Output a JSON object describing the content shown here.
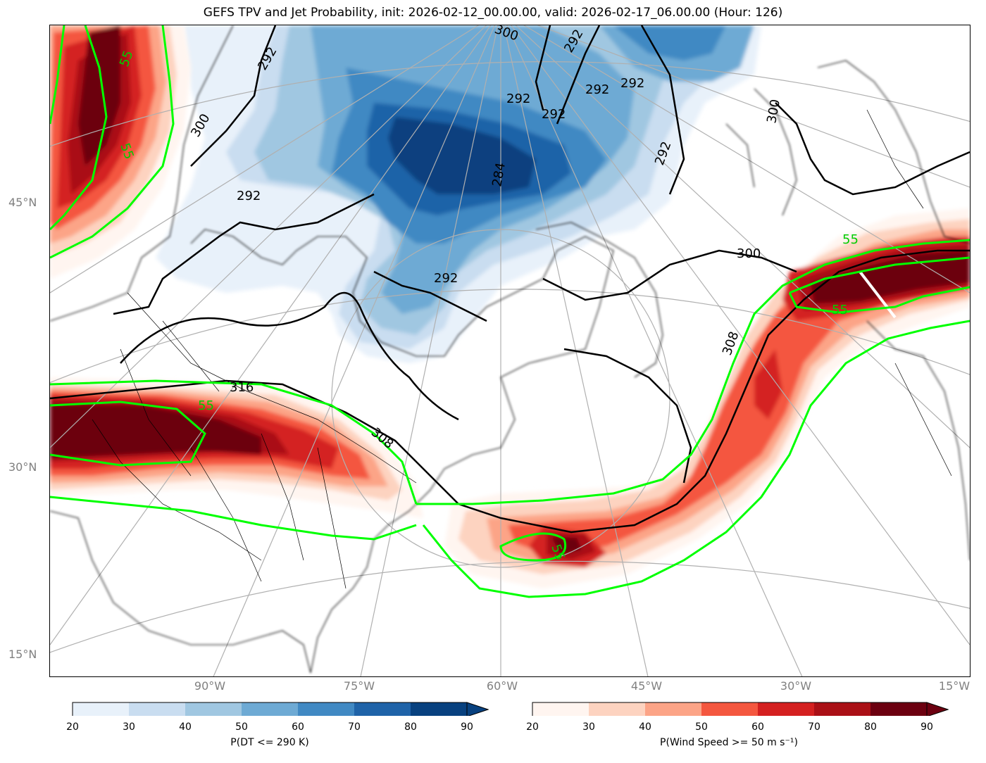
{
  "title": "GEFS TPV and Jet Probability, init: 2026-02-12_00.00.00, valid: 2026-02-17_06.00.00 (Hour: 126)",
  "lat_labels": [
    "45°N",
    "30°N",
    "15°N"
  ],
  "lon_labels": [
    "90°W",
    "75°W",
    "60°W",
    "45°W",
    "30°W",
    "15°W"
  ],
  "contour_labels": {
    "green": [
      "55",
      "55",
      "55",
      "55",
      "55",
      "55"
    ],
    "black": [
      "292",
      "292",
      "292",
      "292",
      "292",
      "292",
      "292",
      "292",
      "292",
      "284",
      "300",
      "300",
      "300",
      "300",
      "308",
      "308",
      "316"
    ]
  },
  "colorbars": {
    "dt": {
      "label": "P(DT <= 290 K)",
      "ticks": [
        "20",
        "30",
        "40",
        "50",
        "60",
        "70",
        "80",
        "90"
      ],
      "colors": [
        "#e8f1fa",
        "#c9ddf0",
        "#a0c7e1",
        "#6eaad4",
        "#4189c3",
        "#1f63a8",
        "#08417f"
      ]
    },
    "wind": {
      "label": "P(Wind Speed >= 50 m s⁻¹)",
      "ticks": [
        "20",
        "30",
        "40",
        "50",
        "60",
        "70",
        "80",
        "90"
      ],
      "colors": [
        "#fff5f0",
        "#fdd3c0",
        "#fca487",
        "#f4573f",
        "#d42020",
        "#aa1016",
        "#6c0010"
      ]
    }
  },
  "colors": {
    "contour_green": "#00ff00",
    "contour_black": "#000000",
    "grid": "#b0b0b0"
  }
}
